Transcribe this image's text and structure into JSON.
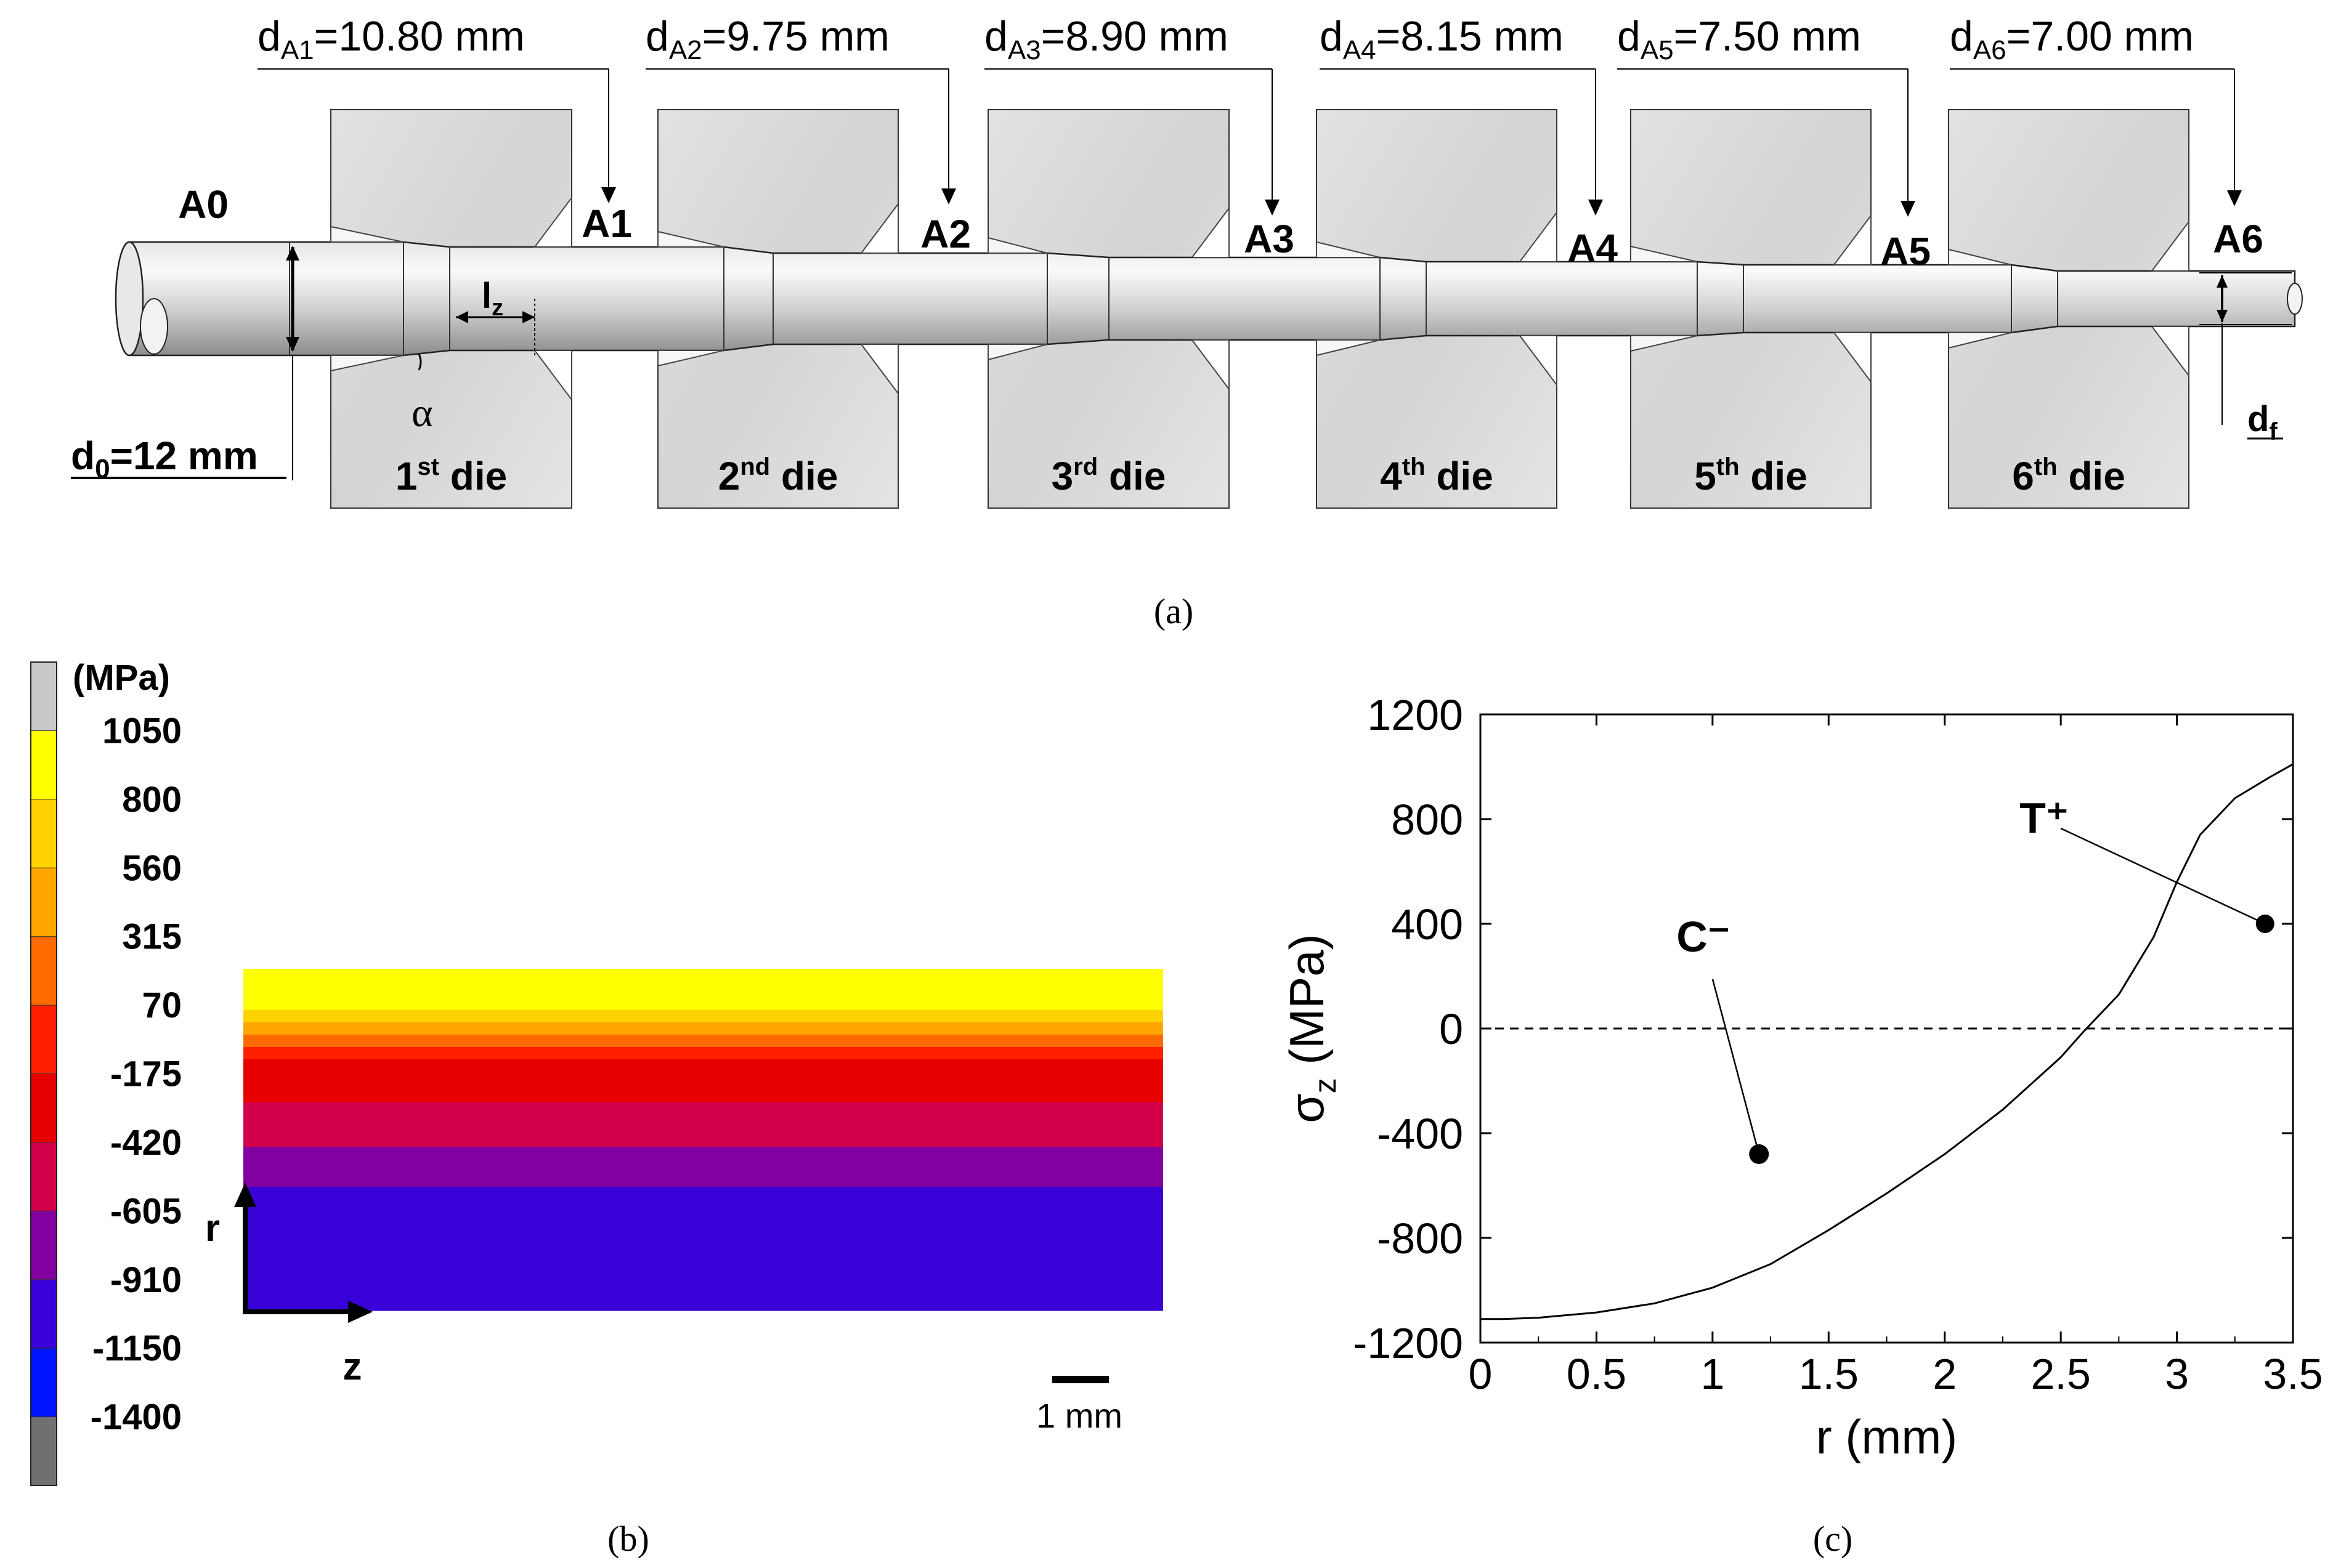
{
  "panel_a": {
    "caption": "(a)",
    "positions": [
      "A0",
      "A1",
      "A2",
      "A3",
      "A4",
      "A5",
      "A6"
    ],
    "diameters": [
      {
        "label": "d",
        "sub": "A1",
        "value": "=10.80 mm"
      },
      {
        "label": "d",
        "sub": "A2",
        "value": "=9.75 mm"
      },
      {
        "label": "d",
        "sub": "A3",
        "value": "=8.90 mm"
      },
      {
        "label": "d",
        "sub": "A4",
        "value": "=8.15 mm"
      },
      {
        "label": "d",
        "sub": "A5",
        "value": "=7.50 mm"
      },
      {
        "label": "d",
        "sub": "A6",
        "value": "=7.00 mm"
      }
    ],
    "dies": [
      {
        "num": "1",
        "sup": "st",
        "word": " die"
      },
      {
        "num": "2",
        "sup": "nd",
        "word": " die"
      },
      {
        "num": "3",
        "sup": "rd",
        "word": " die"
      },
      {
        "num": "4",
        "sup": "th",
        "word": " die"
      },
      {
        "num": "5",
        "sup": "th",
        "word": " die"
      },
      {
        "num": "6",
        "sup": "th",
        "word": " die"
      }
    ],
    "d0": {
      "label": "d",
      "sub": "0",
      "value": "=12 mm"
    },
    "df": {
      "label": "d",
      "sub": "f"
    },
    "lz": {
      "label": "l",
      "sub": "z"
    },
    "alpha": "α"
  },
  "panel_b": {
    "caption": "(b)",
    "unit": "(MPa)",
    "legend_values": [
      "1050",
      "800",
      "560",
      "315",
      "70",
      "-175",
      "-420",
      "-605",
      "-910",
      "-1150",
      "-1400"
    ],
    "legend_colors": [
      "#c8c8c8",
      "#ffff00",
      "#ffd200",
      "#ffa500",
      "#ff6a00",
      "#ff2000",
      "#e60000",
      "#d2004a",
      "#8200a0",
      "#3a00d8",
      "#0014ff",
      "#707070"
    ],
    "band_colors": [
      "#ffff00",
      "#ffd200",
      "#ffa500",
      "#ff6a00",
      "#ff2000",
      "#e60000",
      "#d2004a",
      "#8200a0",
      "#3a00d8"
    ],
    "axis_r": "r",
    "axis_z": "z",
    "scale_label": "1 mm"
  },
  "panel_c": {
    "caption": "(c)",
    "chart_data": {
      "type": "line",
      "title": "",
      "xlabel": "r (mm)",
      "ylabel_symbol": "σ",
      "ylabel_sub": "z",
      "ylabel_unit": " (MPa)",
      "xlim": [
        0,
        3.5
      ],
      "ylim": [
        -1200,
        1200
      ],
      "xticks": [
        0,
        0.5,
        1,
        1.5,
        2,
        2.5,
        3,
        3.5
      ],
      "xtick_labels": [
        "0",
        "0.5",
        "1",
        "1.5",
        "2",
        "2.5",
        "3",
        "3.5"
      ],
      "yticks": [
        -1200,
        -800,
        -400,
        0,
        400,
        800,
        1200
      ],
      "ytick_labels": [
        "-1200",
        "-800",
        "-400",
        "0",
        "400",
        "800",
        "1200"
      ],
      "zero_line": "dashed",
      "series": [
        {
          "name": "sigma_z",
          "x": [
            0,
            0.1,
            0.25,
            0.5,
            0.75,
            1.0,
            1.25,
            1.5,
            1.75,
            2.0,
            2.25,
            2.5,
            2.6,
            2.75,
            2.9,
            3.0,
            3.1,
            3.25,
            3.4,
            3.5
          ],
          "y": [
            -1110,
            -1110,
            -1105,
            -1085,
            -1050,
            -990,
            -900,
            -770,
            -630,
            -480,
            -310,
            -110,
            -10,
            130,
            350,
            560,
            740,
            880,
            960,
            1010
          ]
        }
      ],
      "annotations": [
        {
          "text": "C⁻",
          "point": [
            1.2,
            -480
          ]
        },
        {
          "text": "T⁺",
          "point": [
            3.38,
            400
          ]
        }
      ]
    }
  }
}
